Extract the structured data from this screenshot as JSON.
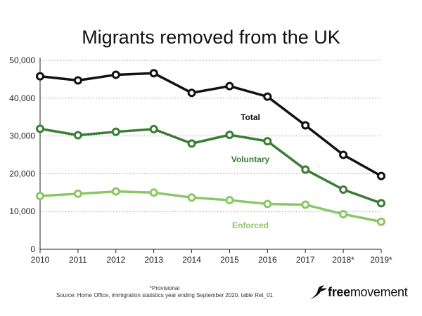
{
  "chart_data": {
    "type": "line",
    "title": "Migrants removed from the UK",
    "xlabel": "",
    "ylabel": "",
    "categories": [
      "2010",
      "2011",
      "2012",
      "2013",
      "2014",
      "2015",
      "2016",
      "2017",
      "2018*",
      "2019*"
    ],
    "ylim": [
      0,
      50000
    ],
    "yticks": [
      0,
      10000,
      20000,
      30000,
      40000,
      50000
    ],
    "ytick_labels": [
      "0",
      "10,000",
      "20,000",
      "30,000",
      "40,000",
      "50,000"
    ],
    "grid": "horizontal dotted",
    "legend": "inline labels",
    "series": [
      {
        "name": "Total",
        "color": "#111111",
        "values": [
          45800,
          44700,
          46200,
          46600,
          41400,
          43200,
          40400,
          32800,
          25000,
          19400
        ]
      },
      {
        "name": "Voluntary",
        "color": "#3a7d34",
        "values": [
          31900,
          30200,
          31100,
          31800,
          28000,
          30300,
          28600,
          21100,
          15800,
          12200
        ]
      },
      {
        "name": "Enforced",
        "color": "#8cc766",
        "values": [
          14100,
          14700,
          15300,
          15000,
          13700,
          13000,
          12000,
          11800,
          9300,
          7300
        ]
      }
    ]
  },
  "footnote": {
    "provisional": "*Provisional",
    "source": "Source: Home Office, immigration statistics year ending September 2020, table Ret_01"
  },
  "logo": {
    "prefix": "free",
    "suffix": "movement",
    "icon": "swallow-bird-icon"
  }
}
